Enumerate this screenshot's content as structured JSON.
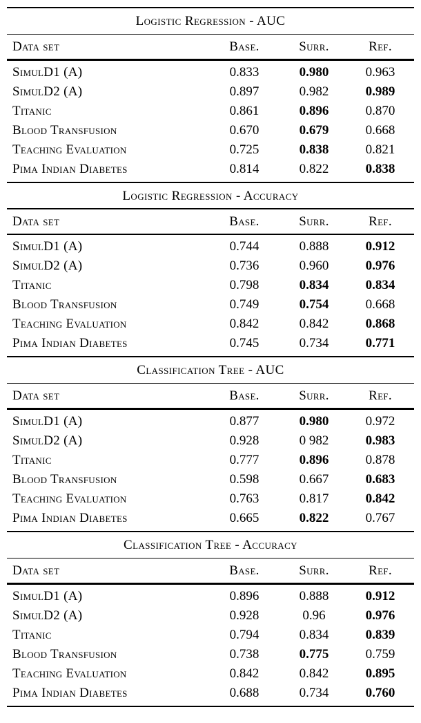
{
  "page": {
    "background": "#ffffff",
    "text_color": "#000000"
  },
  "tables": [
    {
      "title": "Logistic Regression - AUC",
      "columns": [
        "Data set",
        "Base.",
        "Surr.",
        "Ref."
      ],
      "rows": [
        {
          "label": "SimulD1 (A)",
          "values": [
            "0.833",
            "0.980",
            "0.963"
          ],
          "bold": [
            false,
            true,
            false
          ]
        },
        {
          "label": "SimulD2 (A)",
          "values": [
            "0.897",
            "0.982",
            "0.989"
          ],
          "bold": [
            false,
            false,
            true
          ]
        },
        {
          "label": "Titanic",
          "values": [
            "0.861",
            "0.896",
            "0.870"
          ],
          "bold": [
            false,
            true,
            false
          ]
        },
        {
          "label": "Blood Transfusion",
          "values": [
            "0.670",
            "0.679",
            "0.668"
          ],
          "bold": [
            false,
            true,
            false
          ]
        },
        {
          "label": "Teaching Evaluation",
          "values": [
            "0.725",
            "0.838",
            "0.821"
          ],
          "bold": [
            false,
            true,
            false
          ]
        },
        {
          "label": "Pima Indian Diabetes",
          "values": [
            "0.814",
            "0.822",
            "0.838"
          ],
          "bold": [
            false,
            false,
            true
          ]
        }
      ]
    },
    {
      "title": "Logistic Regression - Accuracy",
      "columns": [
        "Data set",
        "Base.",
        "Surr.",
        "Ref."
      ],
      "rows": [
        {
          "label": "SimulD1 (A)",
          "values": [
            "0.744",
            "0.888",
            "0.912"
          ],
          "bold": [
            false,
            false,
            true
          ]
        },
        {
          "label": "SimulD2 (A)",
          "values": [
            "0.736",
            "0.960",
            "0.976"
          ],
          "bold": [
            false,
            false,
            true
          ]
        },
        {
          "label": "Titanic",
          "values": [
            "0.798",
            "0.834",
            "0.834"
          ],
          "bold": [
            false,
            true,
            true
          ]
        },
        {
          "label": "Blood Transfusion",
          "values": [
            "0.749",
            "0.754",
            "0.668"
          ],
          "bold": [
            false,
            true,
            false
          ]
        },
        {
          "label": "Teaching Evaluation",
          "values": [
            "0.842",
            "0.842",
            "0.868"
          ],
          "bold": [
            false,
            false,
            true
          ]
        },
        {
          "label": "Pima Indian Diabetes",
          "values": [
            "0.745",
            "0.734",
            "0.771"
          ],
          "bold": [
            false,
            false,
            true
          ]
        }
      ]
    },
    {
      "title": "Classification Tree - AUC",
      "columns": [
        "Data set",
        "Base.",
        "Surr.",
        "Ref."
      ],
      "rows": [
        {
          "label": "SimulD1 (A)",
          "values": [
            "0.877",
            "0.980",
            "0.972"
          ],
          "bold": [
            false,
            true,
            false
          ]
        },
        {
          "label": "SimulD2 (A)",
          "values": [
            "0.928",
            "0 982",
            "0.983"
          ],
          "bold": [
            false,
            false,
            true
          ]
        },
        {
          "label": "Titanic",
          "values": [
            "0.777",
            "0.896",
            "0.878"
          ],
          "bold": [
            false,
            true,
            false
          ]
        },
        {
          "label": "Blood Transfusion",
          "values": [
            "0.598",
            "0.667",
            "0.683"
          ],
          "bold": [
            false,
            false,
            true
          ]
        },
        {
          "label": "Teaching Evaluation",
          "values": [
            "0.763",
            "0.817",
            "0.842"
          ],
          "bold": [
            false,
            false,
            true
          ]
        },
        {
          "label": "Pima Indian Diabetes",
          "values": [
            "0.665",
            "0.822",
            "0.767"
          ],
          "bold": [
            false,
            true,
            false
          ]
        }
      ]
    },
    {
      "title": "Classification Tree - Accuracy",
      "columns": [
        "Data set",
        "Base.",
        "Surr.",
        "Ref."
      ],
      "rows": [
        {
          "label": "SimulD1 (A)",
          "values": [
            "0.896",
            "0.888",
            "0.912"
          ],
          "bold": [
            false,
            false,
            true
          ]
        },
        {
          "label": "SimulD2 (A)",
          "values": [
            "0.928",
            "0.96",
            "0.976"
          ],
          "bold": [
            false,
            false,
            true
          ]
        },
        {
          "label": "Titanic",
          "values": [
            "0.794",
            "0.834",
            "0.839"
          ],
          "bold": [
            false,
            false,
            true
          ]
        },
        {
          "label": "Blood Transfusion",
          "values": [
            "0.738",
            "0.775",
            "0.759"
          ],
          "bold": [
            false,
            true,
            false
          ]
        },
        {
          "label": "Teaching Evaluation",
          "values": [
            "0.842",
            "0.842",
            "0.895"
          ],
          "bold": [
            false,
            false,
            true
          ]
        },
        {
          "label": "Pima Indian Diabetes",
          "values": [
            "0.688",
            "0.734",
            "0.760"
          ],
          "bold": [
            false,
            false,
            true
          ]
        }
      ]
    }
  ]
}
